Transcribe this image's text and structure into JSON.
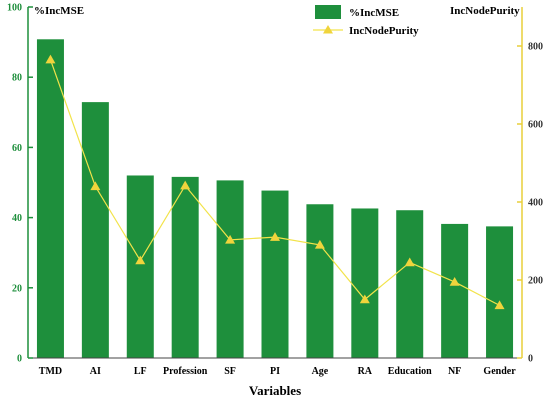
{
  "chart_data": {
    "type": "bar",
    "categories": [
      "TMD",
      "AI",
      "LF",
      "Profession",
      "SF",
      "PI",
      "Age",
      "RA",
      "Education",
      "NF",
      "Gender"
    ],
    "series": [
      {
        "name": "%IncMSE",
        "type": "bar",
        "axis": "left",
        "color": "#1e8f3c",
        "values": [
          90.8,
          72.9,
          52.0,
          51.6,
          50.6,
          47.7,
          43.8,
          42.6,
          42.1,
          38.2,
          37.5
        ]
      },
      {
        "name": "IncNodePurity",
        "type": "line",
        "axis": "right",
        "color": "#f2e34a",
        "marker_color": "#f0d43c",
        "values": [
          765,
          440,
          250,
          442,
          303,
          310,
          290,
          150,
          245,
          195,
          135
        ]
      }
    ],
    "xlabel": "Variables",
    "ylabel_left": "%IncMSE",
    "ylabel_right": "IncNodePurity",
    "ylim_left": [
      0,
      100
    ],
    "ylim_right": [
      0,
      900
    ],
    "yticks_left": [
      "0",
      "20",
      "40",
      "60",
      "80",
      "100"
    ],
    "yticks_right": [
      "0",
      "200",
      "400",
      "600",
      "800"
    ],
    "left_axis_color": "#1e8f3c",
    "right_axis_color": "#e8cf3a",
    "grid": false,
    "legend_position": "top-center"
  }
}
